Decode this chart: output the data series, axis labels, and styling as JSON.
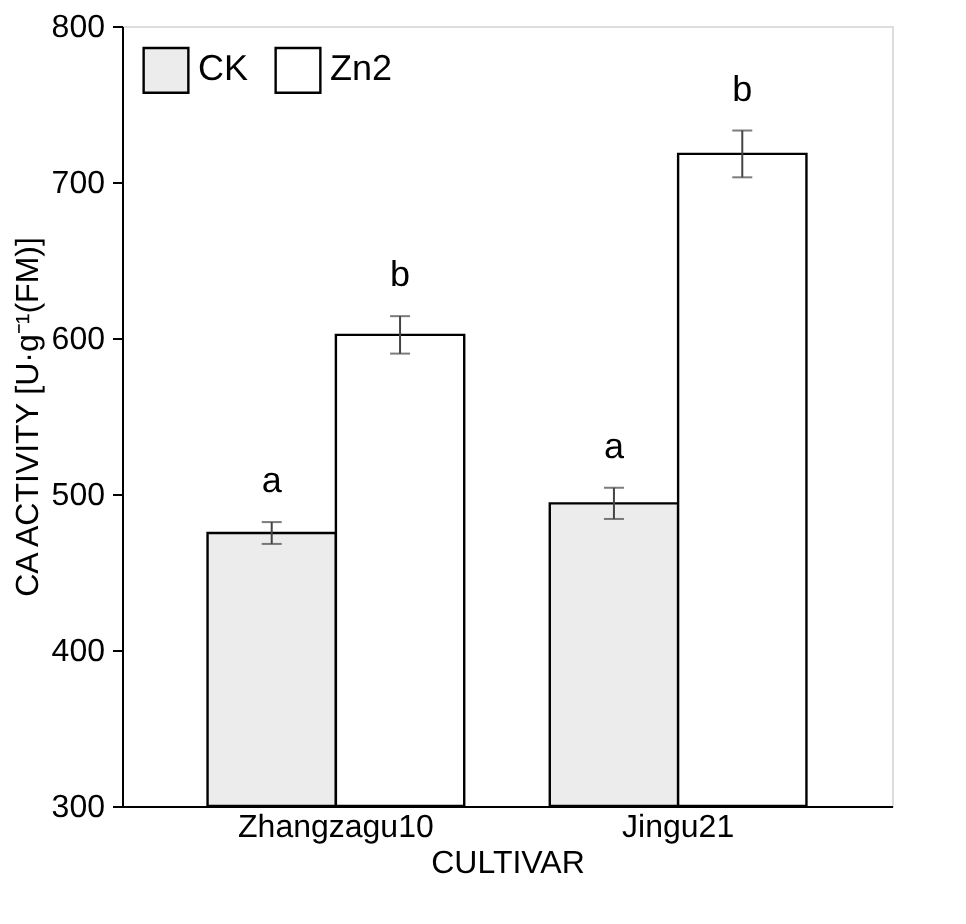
{
  "chart_data": {
    "type": "bar",
    "xlabel": "CULTIVAR",
    "ylabel": "CA ACTIVITY [U·g⁻¹(FM)]",
    "categories": [
      "Zhangzagu10",
      "Jingu21"
    ],
    "series": [
      {
        "name": "CK",
        "color": "#ececec",
        "values": [
          475,
          494
        ],
        "errors": [
          7,
          10
        ],
        "value_labels": [
          "a",
          "a"
        ]
      },
      {
        "name": "Zn2",
        "color": "#ffffff",
        "values": [
          602,
          718
        ],
        "errors": [
          12,
          15
        ],
        "value_labels": [
          "b",
          "b"
        ]
      }
    ],
    "ylim": [
      300,
      800
    ],
    "yticks": [
      300,
      400,
      500,
      600,
      700,
      800
    ],
    "grid": false,
    "legend": "top left"
  }
}
